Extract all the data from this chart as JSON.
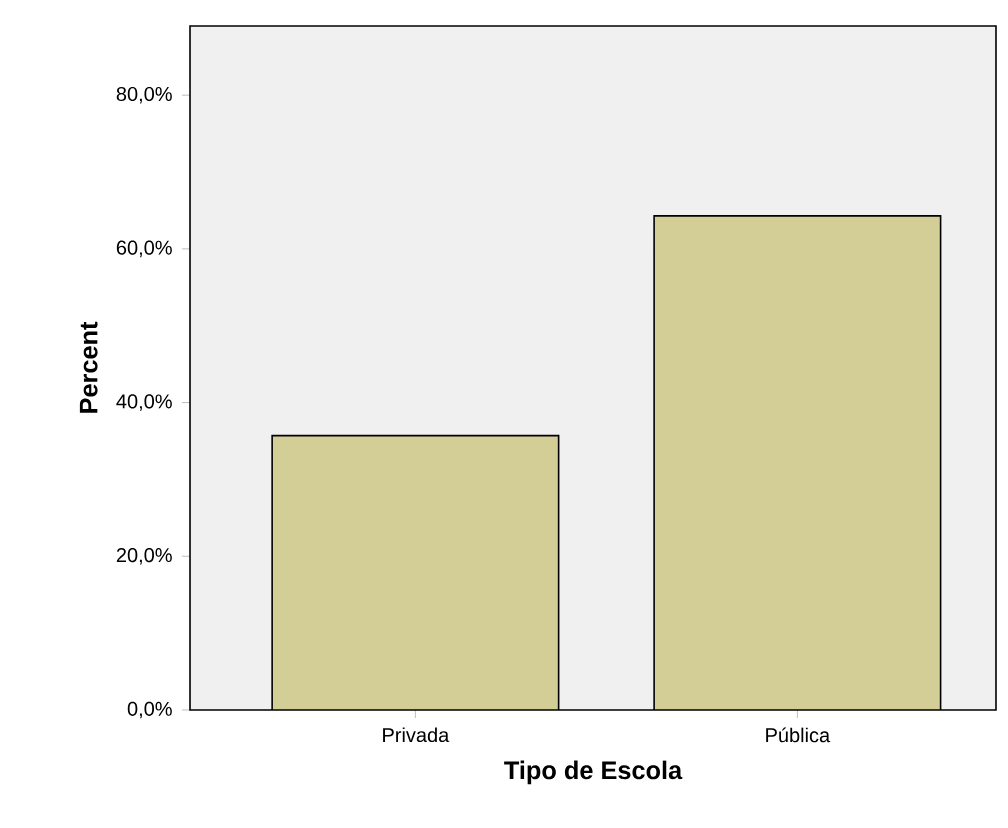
{
  "chart_data": {
    "type": "bar",
    "xlabel": "Tipo de Escola",
    "ylabel": "Percent",
    "categories": [
      "Privada",
      "Pública"
    ],
    "values": [
      35.7,
      64.3
    ],
    "color": "#d3cd96",
    "ylim": [
      0,
      89
    ],
    "yticks": [
      {
        "value": 0,
        "label": "0,0%"
      },
      {
        "value": 20,
        "label": "20,0%"
      },
      {
        "value": 40,
        "label": "40,0%"
      },
      {
        "value": 60,
        "label": "60,0%"
      },
      {
        "value": 80,
        "label": "80,0%"
      }
    ]
  }
}
